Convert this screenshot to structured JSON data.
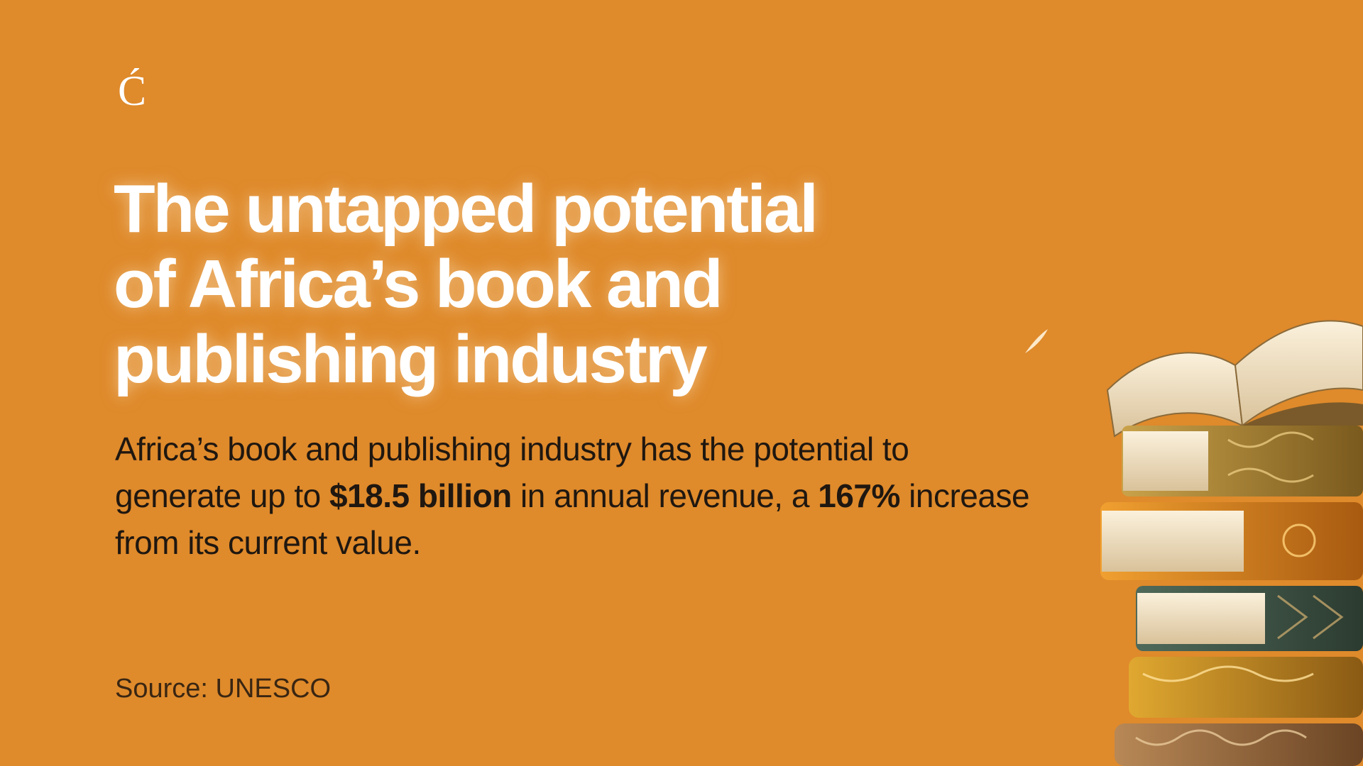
{
  "logo": {
    "glyph": "Ć"
  },
  "headline": {
    "line1": "The untapped potential",
    "line2": "of Africa’s book and",
    "line3": "publishing industry"
  },
  "body": {
    "part1": "Africa’s book and publishing industry has the potential to generate up to ",
    "revenue": "$18.5 billion",
    "part2": " in annual revenue, a ",
    "increase": "167%",
    "part3": " increase from its current value."
  },
  "source": {
    "label": "Source: UNESCO"
  },
  "colors": {
    "background": "#df8a2b",
    "headline": "#ffffff",
    "body_text": "#1f1710"
  },
  "illustration": {
    "icon": "book-stack-icon"
  }
}
